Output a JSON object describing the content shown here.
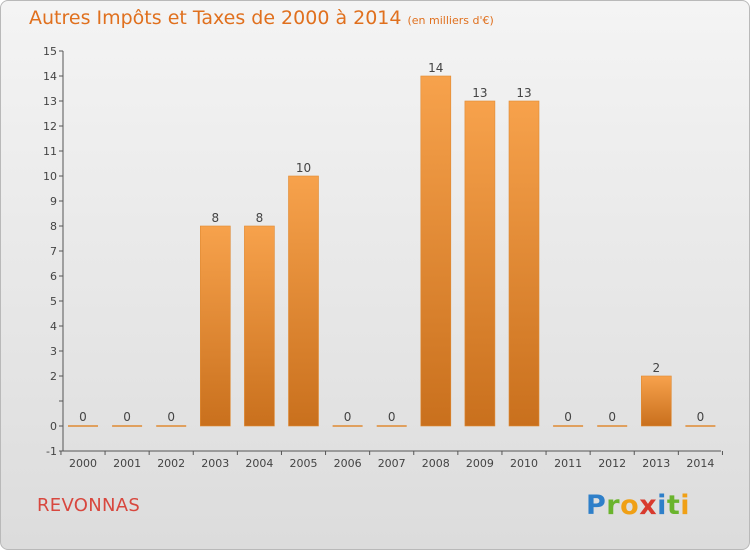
{
  "header": {
    "title": "Autres Impôts et Taxes de 2000 à 2014",
    "unit": "(en milliers d'€)"
  },
  "footer": {
    "commune": "REVONNAS",
    "logo_letters": [
      {
        "ch": "P",
        "color": "#2e7fc9"
      },
      {
        "ch": "r",
        "color": "#6ab42d"
      },
      {
        "ch": "o",
        "color": "#f0a015"
      },
      {
        "ch": "x",
        "color": "#d83a2e"
      },
      {
        "ch": "i",
        "color": "#2e7fc9"
      },
      {
        "ch": "t",
        "color": "#6ab42d"
      },
      {
        "ch": "i",
        "color": "#f0a015"
      }
    ]
  },
  "colors": {
    "title": "#e0701e",
    "commune": "#d8473e",
    "bar_light": "#f7a24c",
    "bar_dark": "#c9701d",
    "axis": "#555555"
  },
  "chart_data": {
    "type": "bar",
    "title": "Autres Impôts et Taxes de 2000 à 2014",
    "subtitle": "(en milliers d'€)",
    "categories": [
      "2000",
      "2001",
      "2002",
      "2003",
      "2004",
      "2005",
      "2006",
      "2007",
      "2008",
      "2009",
      "2010",
      "2011",
      "2012",
      "2013",
      "2014"
    ],
    "values": [
      0,
      0,
      0,
      8,
      8,
      10,
      0,
      0,
      14,
      13,
      13,
      0,
      0,
      2,
      0
    ],
    "ylim": [
      -1,
      15
    ],
    "yticks": [
      -1,
      0,
      1,
      2,
      3,
      4,
      5,
      6,
      7,
      8,
      9,
      10,
      11,
      12,
      13,
      14,
      15
    ],
    "ytick_labels": [
      "-1",
      "0",
      "",
      "2",
      "3",
      "4",
      "5",
      "6",
      "7",
      "8",
      "9",
      "10",
      "11",
      "12",
      "13",
      "14",
      "15"
    ],
    "grid": false
  }
}
